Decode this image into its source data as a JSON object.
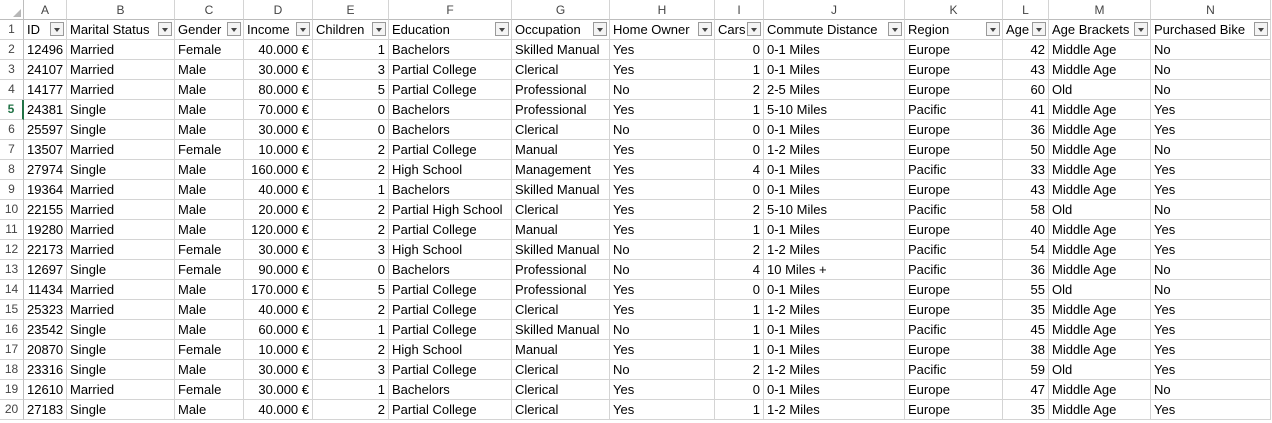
{
  "column_letters": [
    "A",
    "B",
    "C",
    "D",
    "E",
    "F",
    "G",
    "H",
    "I",
    "J",
    "K",
    "L",
    "M",
    "N"
  ],
  "headers": [
    "ID",
    "Marital Status",
    "Gender",
    "Income",
    "Children",
    "Education",
    "Occupation",
    "Home Owner",
    "Cars",
    "Commute Distance",
    "Region",
    "Age",
    "Age Brackets",
    "Purchased Bike"
  ],
  "row_numbers": [
    "1",
    "2",
    "3",
    "4",
    "5",
    "6",
    "7",
    "8",
    "9",
    "10",
    "11",
    "12",
    "13",
    "14",
    "15",
    "16",
    "17",
    "18",
    "19",
    "20"
  ],
  "active_row": 5,
  "rows": [
    [
      "12496",
      "Married",
      "Female",
      "40.000 €",
      "1",
      "Bachelors",
      "Skilled Manual",
      "Yes",
      "0",
      "0-1 Miles",
      "Europe",
      "42",
      "Middle Age",
      "No"
    ],
    [
      "24107",
      "Married",
      "Male",
      "30.000 €",
      "3",
      "Partial College",
      "Clerical",
      "Yes",
      "1",
      "0-1 Miles",
      "Europe",
      "43",
      "Middle Age",
      "No"
    ],
    [
      "14177",
      "Married",
      "Male",
      "80.000 €",
      "5",
      "Partial College",
      "Professional",
      "No",
      "2",
      "2-5 Miles",
      "Europe",
      "60",
      "Old",
      "No"
    ],
    [
      "24381",
      "Single",
      "Male",
      "70.000 €",
      "0",
      "Bachelors",
      "Professional",
      "Yes",
      "1",
      "5-10 Miles",
      "Pacific",
      "41",
      "Middle Age",
      "Yes"
    ],
    [
      "25597",
      "Single",
      "Male",
      "30.000 €",
      "0",
      "Bachelors",
      "Clerical",
      "No",
      "0",
      "0-1 Miles",
      "Europe",
      "36",
      "Middle Age",
      "Yes"
    ],
    [
      "13507",
      "Married",
      "Female",
      "10.000 €",
      "2",
      "Partial College",
      "Manual",
      "Yes",
      "0",
      "1-2 Miles",
      "Europe",
      "50",
      "Middle Age",
      "No"
    ],
    [
      "27974",
      "Single",
      "Male",
      "160.000 €",
      "2",
      "High School",
      "Management",
      "Yes",
      "4",
      "0-1 Miles",
      "Pacific",
      "33",
      "Middle Age",
      "Yes"
    ],
    [
      "19364",
      "Married",
      "Male",
      "40.000 €",
      "1",
      "Bachelors",
      "Skilled Manual",
      "Yes",
      "0",
      "0-1 Miles",
      "Europe",
      "43",
      "Middle Age",
      "Yes"
    ],
    [
      "22155",
      "Married",
      "Male",
      "20.000 €",
      "2",
      "Partial High School",
      "Clerical",
      "Yes",
      "2",
      "5-10 Miles",
      "Pacific",
      "58",
      "Old",
      "No"
    ],
    [
      "19280",
      "Married",
      "Male",
      "120.000 €",
      "2",
      "Partial College",
      "Manual",
      "Yes",
      "1",
      "0-1 Miles",
      "Europe",
      "40",
      "Middle Age",
      "Yes"
    ],
    [
      "22173",
      "Married",
      "Female",
      "30.000 €",
      "3",
      "High School",
      "Skilled Manual",
      "No",
      "2",
      "1-2 Miles",
      "Pacific",
      "54",
      "Middle Age",
      "Yes"
    ],
    [
      "12697",
      "Single",
      "Female",
      "90.000 €",
      "0",
      "Bachelors",
      "Professional",
      "No",
      "4",
      "10 Miles +",
      "Pacific",
      "36",
      "Middle Age",
      "No"
    ],
    [
      "11434",
      "Married",
      "Male",
      "170.000 €",
      "5",
      "Partial College",
      "Professional",
      "Yes",
      "0",
      "0-1 Miles",
      "Europe",
      "55",
      "Old",
      "No"
    ],
    [
      "25323",
      "Married",
      "Male",
      "40.000 €",
      "2",
      "Partial College",
      "Clerical",
      "Yes",
      "1",
      "1-2 Miles",
      "Europe",
      "35",
      "Middle Age",
      "Yes"
    ],
    [
      "23542",
      "Single",
      "Male",
      "60.000 €",
      "1",
      "Partial College",
      "Skilled Manual",
      "No",
      "1",
      "0-1 Miles",
      "Pacific",
      "45",
      "Middle Age",
      "Yes"
    ],
    [
      "20870",
      "Single",
      "Female",
      "10.000 €",
      "2",
      "High School",
      "Manual",
      "Yes",
      "1",
      "0-1 Miles",
      "Europe",
      "38",
      "Middle Age",
      "Yes"
    ],
    [
      "23316",
      "Single",
      "Male",
      "30.000 €",
      "3",
      "Partial College",
      "Clerical",
      "No",
      "2",
      "1-2 Miles",
      "Pacific",
      "59",
      "Old",
      "Yes"
    ],
    [
      "12610",
      "Married",
      "Female",
      "30.000 €",
      "1",
      "Bachelors",
      "Clerical",
      "Yes",
      "0",
      "0-1 Miles",
      "Europe",
      "47",
      "Middle Age",
      "No"
    ],
    [
      "27183",
      "Single",
      "Male",
      "40.000 €",
      "2",
      "Partial College",
      "Clerical",
      "Yes",
      "1",
      "1-2 Miles",
      "Europe",
      "35",
      "Middle Age",
      "Yes"
    ]
  ]
}
